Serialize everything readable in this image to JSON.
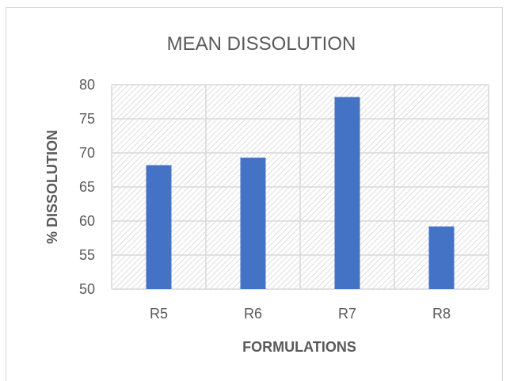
{
  "chart_data": {
    "type": "bar",
    "title": "MEAN DISSOLUTION",
    "xlabel": "FORMULATIONS",
    "ylabel": "% DISSOLUTION",
    "categories": [
      "R5",
      "R6",
      "R7",
      "R8"
    ],
    "values": [
      68.2,
      69.3,
      78.2,
      59.2
    ],
    "ylim": [
      50,
      80
    ],
    "yticks": [
      "50",
      "55",
      "60",
      "65",
      "70",
      "75",
      "80"
    ],
    "grid": true,
    "legend": "none",
    "colors": {
      "bar": "#4472c4",
      "grid": "#d9d9d9",
      "hatch": "#c8c8c8",
      "text": "#595959"
    }
  }
}
